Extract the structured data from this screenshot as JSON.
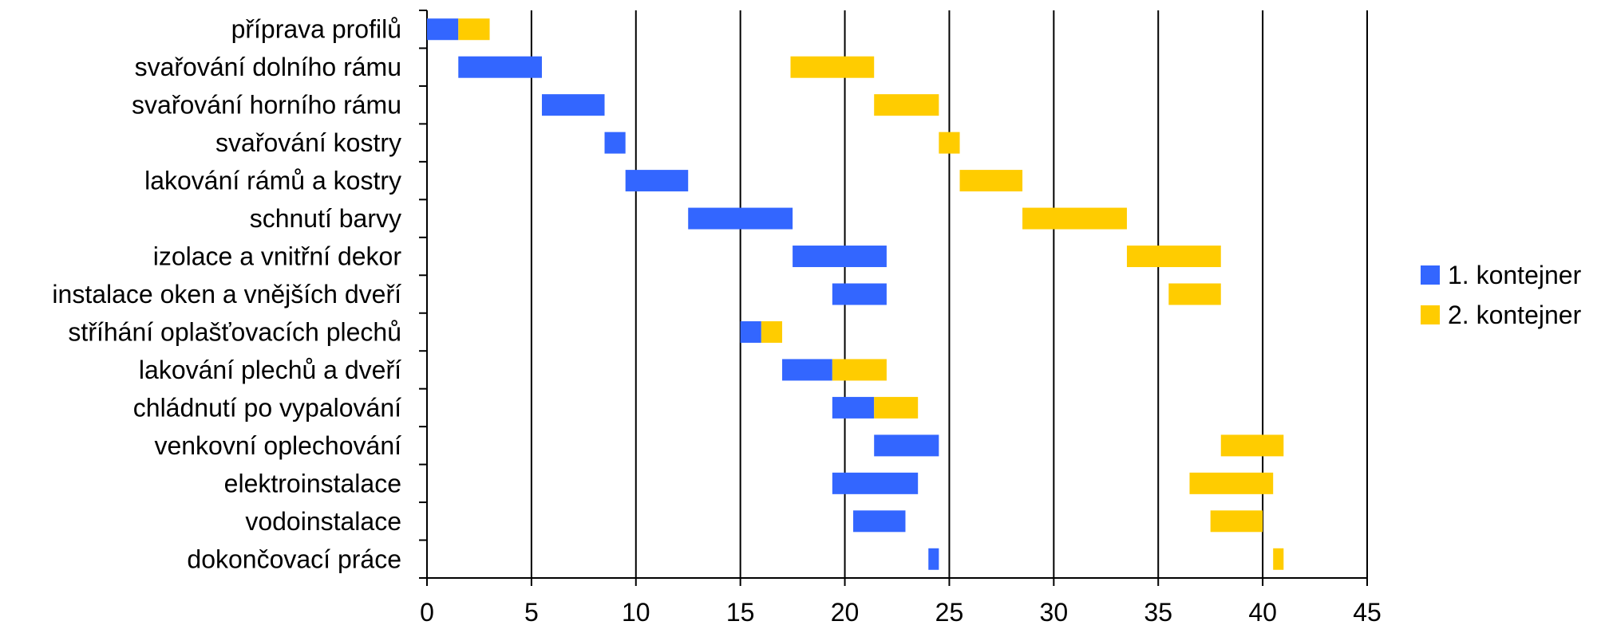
{
  "chart_data": {
    "type": "bar",
    "orientation": "horizontal",
    "stacked": "gantt",
    "categories": [
      "příprava profilů",
      "svařování dolního rámu",
      "svařování horního rámu",
      "svařování kostry",
      "lakování rámů a kostry",
      "schnutí barvy",
      "izolace a vnitřní dekor",
      "instalace oken a vnějších dveří",
      "stříhání oplašťovacích plechů",
      "lakování plechů a dveří",
      "chládnutí po vypalování",
      "venkovní oplechování",
      "elektroinstalace",
      "vodoinstalace",
      "dokončovací práce"
    ],
    "series": [
      {
        "name": "1. kontejner",
        "color": "#3366ff",
        "bars": [
          [
            0,
            1.5
          ],
          [
            1.5,
            5.5
          ],
          [
            5.5,
            8.5
          ],
          [
            8.5,
            9.5
          ],
          [
            9.5,
            12.5
          ],
          [
            12.5,
            17.5
          ],
          [
            17.5,
            22
          ],
          [
            19.4,
            22
          ],
          [
            15,
            16
          ],
          [
            17,
            19.4
          ],
          [
            19.4,
            21.4
          ],
          [
            21.4,
            24.5
          ],
          [
            19.4,
            23.5
          ],
          [
            20.4,
            22.9
          ],
          [
            24,
            24.5
          ]
        ]
      },
      {
        "name": "2. kontejner",
        "color": "#ffcc00",
        "bars": [
          [
            1.5,
            3
          ],
          [
            17.4,
            21.4
          ],
          [
            21.4,
            24.5
          ],
          [
            24.5,
            25.5
          ],
          [
            25.5,
            28.5
          ],
          [
            28.5,
            33.5
          ],
          [
            33.5,
            38
          ],
          [
            35.5,
            38
          ],
          [
            16,
            17
          ],
          [
            19.4,
            22
          ],
          [
            21.4,
            23.5
          ],
          [
            38,
            41
          ],
          [
            36.5,
            40.5
          ],
          [
            37.5,
            40
          ],
          [
            40.5,
            41
          ]
        ]
      }
    ],
    "xlim": [
      0,
      45
    ],
    "xticks": [
      "0",
      "5",
      "10",
      "15",
      "20",
      "25",
      "30",
      "35",
      "40",
      "45"
    ],
    "grid": "vertical",
    "legend": "right"
  }
}
